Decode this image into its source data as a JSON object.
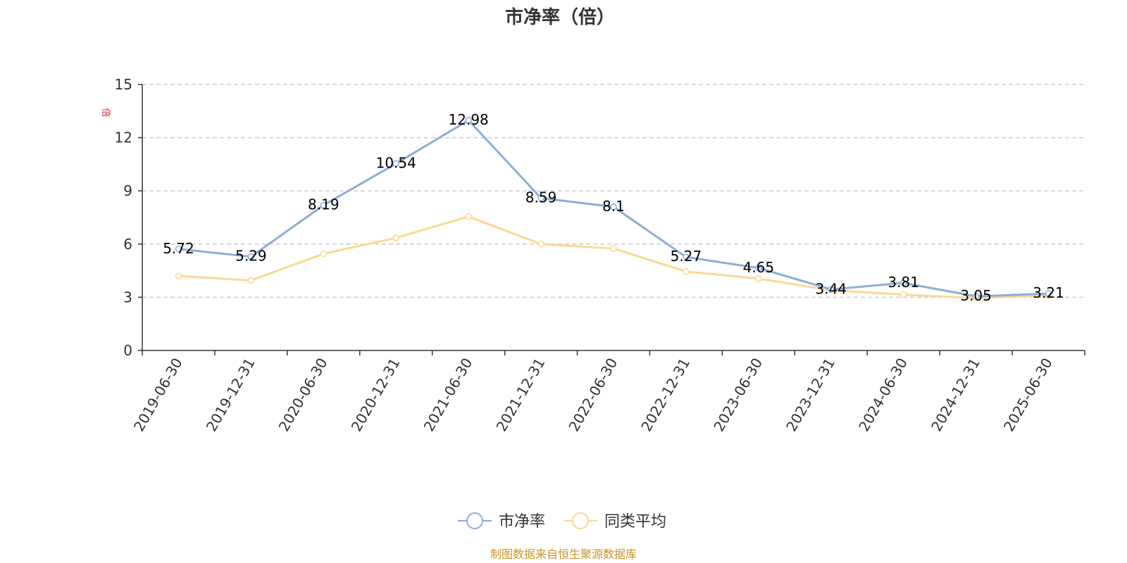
{
  "chart_data": {
    "type": "line",
    "title": "市净率（倍）",
    "ylabel": "倍",
    "ylim": [
      0,
      15
    ],
    "yticks": [
      0,
      3,
      6,
      9,
      12,
      15
    ],
    "grid": true,
    "legend_position": "bottom-center",
    "categories": [
      "2019-06-30",
      "2019-12-31",
      "2020-06-30",
      "2020-12-31",
      "2021-06-30",
      "2021-12-31",
      "2022-06-30",
      "2022-12-31",
      "2023-06-30",
      "2023-12-31",
      "2024-06-30",
      "2024-12-31",
      "2025-06-30"
    ],
    "series": [
      {
        "name": "市净率",
        "color": "#8eacd8",
        "values": [
          5.72,
          5.29,
          8.19,
          10.54,
          12.98,
          8.59,
          8.1,
          5.27,
          4.65,
          3.44,
          3.81,
          3.05,
          3.21
        ],
        "show_labels": true
      },
      {
        "name": "同类平均",
        "color": "#fcd993",
        "values": [
          4.2,
          3.95,
          5.45,
          6.35,
          7.55,
          6.0,
          5.75,
          4.45,
          4.05,
          3.4,
          3.15,
          2.95,
          3.1
        ],
        "show_labels": false
      }
    ]
  },
  "source_text": "制图数据来自恒生聚源数据库"
}
